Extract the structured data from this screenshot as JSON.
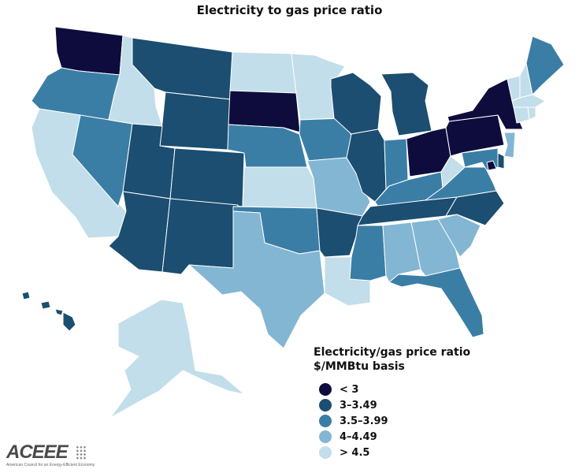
{
  "title": "Electricity to gas price ratio",
  "legend": {
    "title_line1": "Electricity/gas price ratio",
    "title_line2": "$/MMBtu basis",
    "bins": [
      {
        "label": "< 3",
        "color": "#0d0c3d"
      },
      {
        "label": "3–3.49",
        "color": "#1b4e70"
      },
      {
        "label": "3.5–3.99",
        "color": "#3a7ea6"
      },
      {
        "label": "4–4.49",
        "color": "#82b6d3"
      },
      {
        "label": "> 4.5",
        "color": "#c2deea"
      }
    ]
  },
  "states": {
    "WA": 0,
    "OR": 2,
    "CA": 4,
    "NV": 2,
    "ID": 4,
    "MT": 1,
    "WY": 1,
    "UT": 1,
    "AZ": 1,
    "CO": 1,
    "NM": 1,
    "ND": 4,
    "SD": 0,
    "NE": 2,
    "KS": 4,
    "OK": 2,
    "TX": 3,
    "MN": 4,
    "IA": 2,
    "MO": 3,
    "AR": 1,
    "LA": 4,
    "WI": 1,
    "IL": 1,
    "MS": 2,
    "MI": 1,
    "IN": 2,
    "OH": 0,
    "KY": 2,
    "TN": 1,
    "AL": 3,
    "GA": 3,
    "FL": 2,
    "SC": 3,
    "NC": 1,
    "VA": 2,
    "WV": 4,
    "PA": 0,
    "NY": 0,
    "VT": 4,
    "NH": 4,
    "ME": 2,
    "MA": 4,
    "CT": 4,
    "RI": 4,
    "NJ": 3,
    "DE": 1,
    "MD": 2,
    "DC": 0,
    "AK": 4,
    "HI": 1
  },
  "logo": {
    "wordmark": "ACEEE",
    "tagline": "American Council for an Energy-Efficient Economy"
  }
}
